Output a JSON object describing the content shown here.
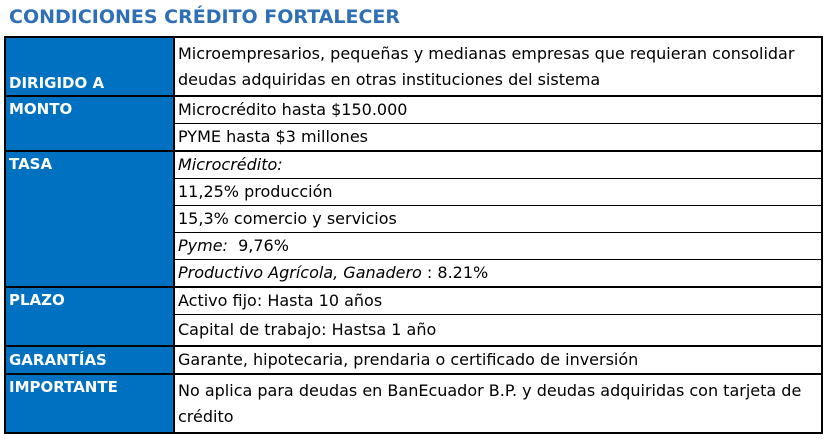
{
  "title": "CONDICIONES CRÉDITO FORTALECER",
  "rows": {
    "dirigido": {
      "label": "DIRIGIDO A",
      "value": "Microempresarios, pequeñas y medianas empresas que requieran consolidar deudas adquiridas en otras instituciones del sistema"
    },
    "monto": {
      "label": "MONTO",
      "values": [
        "Microcrédito hasta $150.000",
        "PYME hasta $3 millones"
      ]
    },
    "tasa": {
      "label": "TASA",
      "line1": "Microcrédito:",
      "line2": "11,25% producción",
      "line3": "15,3% comercio y servicios",
      "line4_italic": "Pyme:",
      "line4_rest": "  9,76%",
      "line5_italic": "Productivo Agrícola, Ganadero",
      "line5_rest": " : 8.21%"
    },
    "plazo": {
      "label": "PLAZO",
      "values": [
        "Activo fijo: Hasta 10 años",
        "Capital de trabajo: Hastsa 1 año"
      ]
    },
    "garantias": {
      "label": "GARANTÍAS",
      "value": "Garante, hipotecaria, prendaria o certificado de inversión"
    },
    "importante": {
      "label": "IMPORTANTE",
      "value": "No aplica para deudas en BanEcuador B.P. y deudas adquiridas con tarjeta de crédito"
    }
  }
}
